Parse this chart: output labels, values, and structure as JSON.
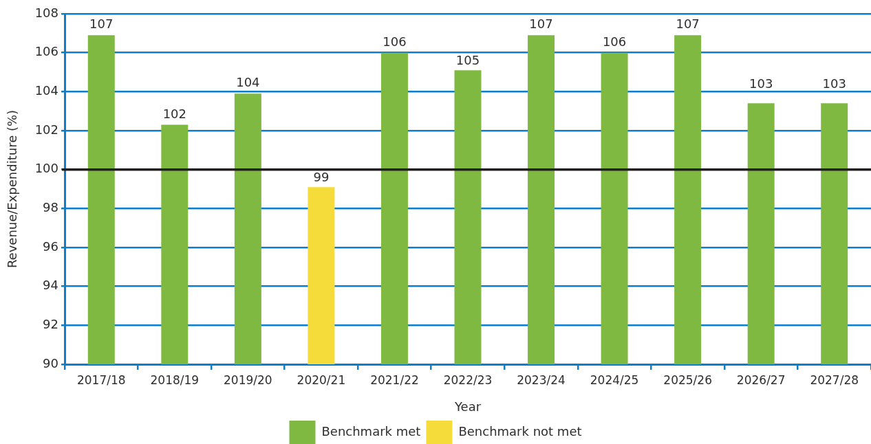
{
  "chart_data": {
    "type": "bar",
    "categories": [
      "2017/18",
      "2018/19",
      "2019/20",
      "2020/21",
      "2021/22",
      "2022/23",
      "2023/24",
      "2024/25",
      "2025/26",
      "2026/27",
      "2027/28"
    ],
    "series": [
      {
        "name": "Benchmark met",
        "color": "#7fb942",
        "values": [
          106.9,
          102.3,
          103.9,
          null,
          106.0,
          105.1,
          106.9,
          106.0,
          106.9,
          103.4,
          103.4
        ],
        "value_labels": [
          "107",
          "102",
          "104",
          null,
          "106",
          "105",
          "107",
          "106",
          "107",
          "103",
          "103"
        ]
      },
      {
        "name": "Benchmark not met",
        "color": "#f5dc3a",
        "values": [
          null,
          null,
          null,
          99.1,
          null,
          null,
          null,
          null,
          null,
          null,
          null
        ],
        "value_labels": [
          null,
          null,
          null,
          "99",
          null,
          null,
          null,
          null,
          null,
          null,
          null
        ]
      }
    ],
    "xlabel": "Year",
    "ylabel": "Revenue/Expenditure (%)",
    "ylim": [
      90,
      108
    ],
    "yticks": [
      90,
      92,
      94,
      96,
      98,
      100,
      102,
      104,
      106,
      108
    ],
    "grid": "y",
    "legend": "bottom",
    "ref_lines": [
      {
        "axis": "y",
        "value": 100,
        "color": "#231f20"
      }
    ]
  }
}
